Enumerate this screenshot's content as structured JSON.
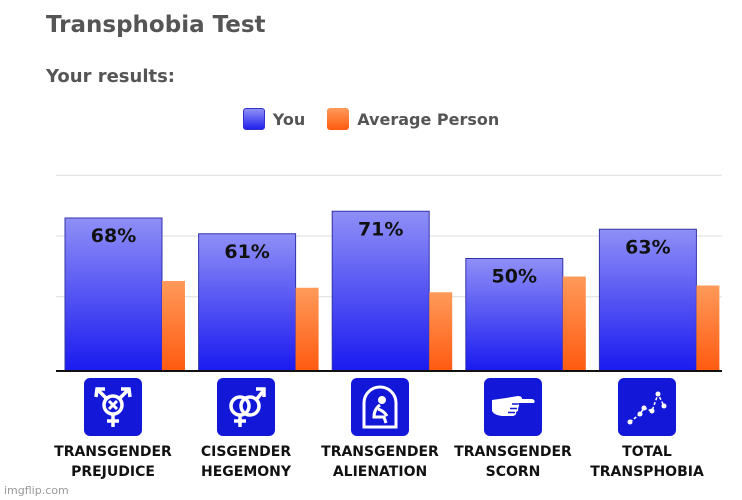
{
  "header": {
    "title": "Transphobia Test",
    "subtitle": "Your results:"
  },
  "legend": {
    "you": "You",
    "average": "Average Person"
  },
  "colors": {
    "you_top": "#8f8ff7",
    "you_bottom": "#1a1af0",
    "avg_top": "#ff9a5a",
    "avg_bottom": "#ff5a10",
    "icon_bg": "#1318d8",
    "grid": "#dddddd"
  },
  "chart_data": {
    "type": "bar",
    "title": "",
    "categories": [
      {
        "line1": "TRANSGENDER",
        "line2": "PREJUDICE",
        "icon": "transgender-symbol-icon"
      },
      {
        "line1": "CISGENDER",
        "line2": "HEGEMONY",
        "icon": "male-female-symbol-icon"
      },
      {
        "line1": "TRANSGENDER",
        "line2": "ALIENATION",
        "icon": "alienated-person-icon"
      },
      {
        "line1": "TRANSGENDER",
        "line2": "SCORN",
        "icon": "pointing-hand-icon"
      },
      {
        "line1": "TOTAL",
        "line2": "TRANSPHOBIA",
        "icon": "constellation-icon"
      }
    ],
    "series": [
      {
        "name": "You",
        "values": [
          68,
          61,
          71,
          50,
          63
        ],
        "labels": [
          "68%",
          "61%",
          "71%",
          "50%",
          "63%"
        ]
      },
      {
        "name": "Average Person",
        "values": [
          40,
          37,
          35,
          42,
          38
        ]
      }
    ],
    "ylim": [
      0,
      100
    ],
    "grid": true
  },
  "watermark": "imgflip.com"
}
